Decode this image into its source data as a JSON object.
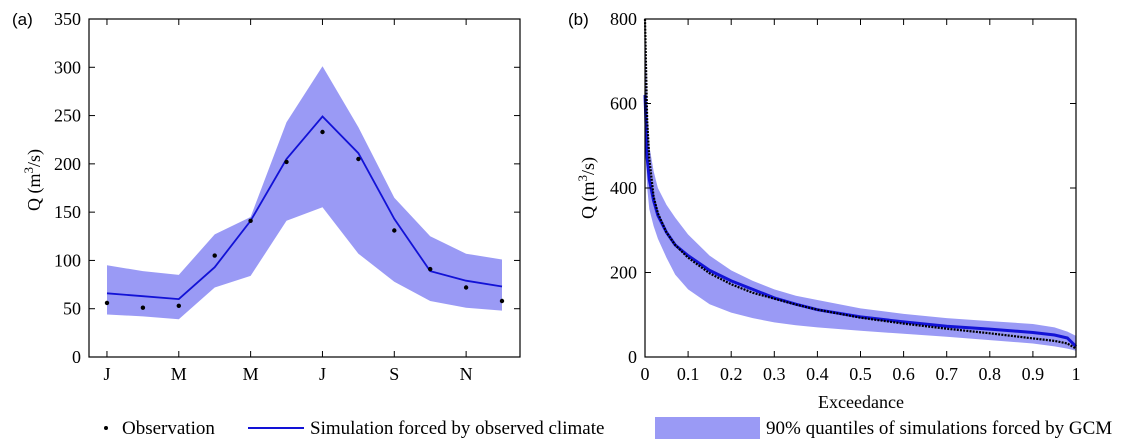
{
  "colors": {
    "band": "#9a9af5",
    "line": "#1212d6",
    "obs": "#000000",
    "axis": "#000000"
  },
  "legend": {
    "observation": "Observation",
    "simulation": "Simulation forced by observed climate",
    "band": "90% quantiles of simulations forced by GCM"
  },
  "chart_data": [
    {
      "type": "line",
      "panel_label": "(a)",
      "xlabel": "",
      "ylabel_prefix": "Q (m",
      "ylabel_sup": "3",
      "ylabel_suffix": "/s)",
      "xlim": [
        0.5,
        12.5
      ],
      "ylim": [
        0,
        350
      ],
      "x_ticks": [
        1,
        3,
        5,
        7,
        9,
        11
      ],
      "x_tick_labels": [
        "J",
        "M",
        "M",
        "J",
        "S",
        "N"
      ],
      "y_ticks": [
        0,
        50,
        100,
        150,
        200,
        250,
        300,
        350
      ],
      "x": [
        1,
        2,
        3,
        4,
        5,
        6,
        7,
        8,
        9,
        10,
        11,
        12
      ],
      "band_upper": [
        95,
        89,
        85,
        127,
        145,
        243,
        301,
        238,
        165,
        125,
        107,
        101
      ],
      "band_lower": [
        44,
        42,
        39,
        72,
        84,
        141,
        155,
        107,
        78,
        58,
        51,
        48
      ],
      "simulation": [
        66,
        63,
        60,
        93,
        141,
        205,
        249,
        211,
        143,
        89,
        79,
        73
      ],
      "observation": [
        56,
        51,
        53,
        105,
        141,
        202,
        233,
        205,
        131,
        91,
        72,
        58
      ],
      "grid": false
    },
    {
      "type": "line",
      "panel_label": "(b)",
      "xlabel": "Exceedance",
      "ylabel_prefix": "Q (m",
      "ylabel_sup": "3",
      "ylabel_suffix": "/s)",
      "xlim": [
        0,
        1
      ],
      "ylim": [
        0,
        800
      ],
      "x_ticks": [
        0,
        0.1,
        0.2,
        0.3,
        0.4,
        0.5,
        0.6,
        0.7,
        0.8,
        0.9,
        1
      ],
      "x_tick_labels": [
        "0",
        "0.1",
        "0.2",
        "0.3",
        "0.4",
        "0.5",
        "0.6",
        "0.7",
        "0.8",
        "0.9",
        "1"
      ],
      "y_ticks": [
        0,
        200,
        400,
        600,
        800
      ],
      "x": [
        0,
        0.005,
        0.01,
        0.02,
        0.03,
        0.05,
        0.07,
        0.1,
        0.15,
        0.2,
        0.25,
        0.3,
        0.35,
        0.4,
        0.5,
        0.6,
        0.7,
        0.8,
        0.9,
        0.95,
        0.98,
        1
      ],
      "band_upper": [
        800,
        600,
        500,
        440,
        400,
        360,
        330,
        290,
        240,
        205,
        180,
        160,
        145,
        135,
        115,
        102,
        92,
        85,
        78,
        70,
        60,
        50
      ],
      "band_lower": [
        520,
        400,
        350,
        310,
        280,
        235,
        195,
        160,
        125,
        105,
        92,
        82,
        75,
        70,
        62,
        55,
        48,
        40,
        32,
        25,
        20,
        15
      ],
      "simulation": [
        620,
        470,
        420,
        370,
        335,
        295,
        265,
        240,
        205,
        180,
        160,
        140,
        125,
        112,
        95,
        83,
        73,
        66,
        58,
        52,
        45,
        25
      ],
      "observation": [
        800,
        560,
        470,
        380,
        340,
        295,
        265,
        235,
        198,
        172,
        152,
        138,
        124,
        112,
        93,
        79,
        67,
        56,
        44,
        38,
        32,
        20
      ],
      "grid": false
    }
  ]
}
